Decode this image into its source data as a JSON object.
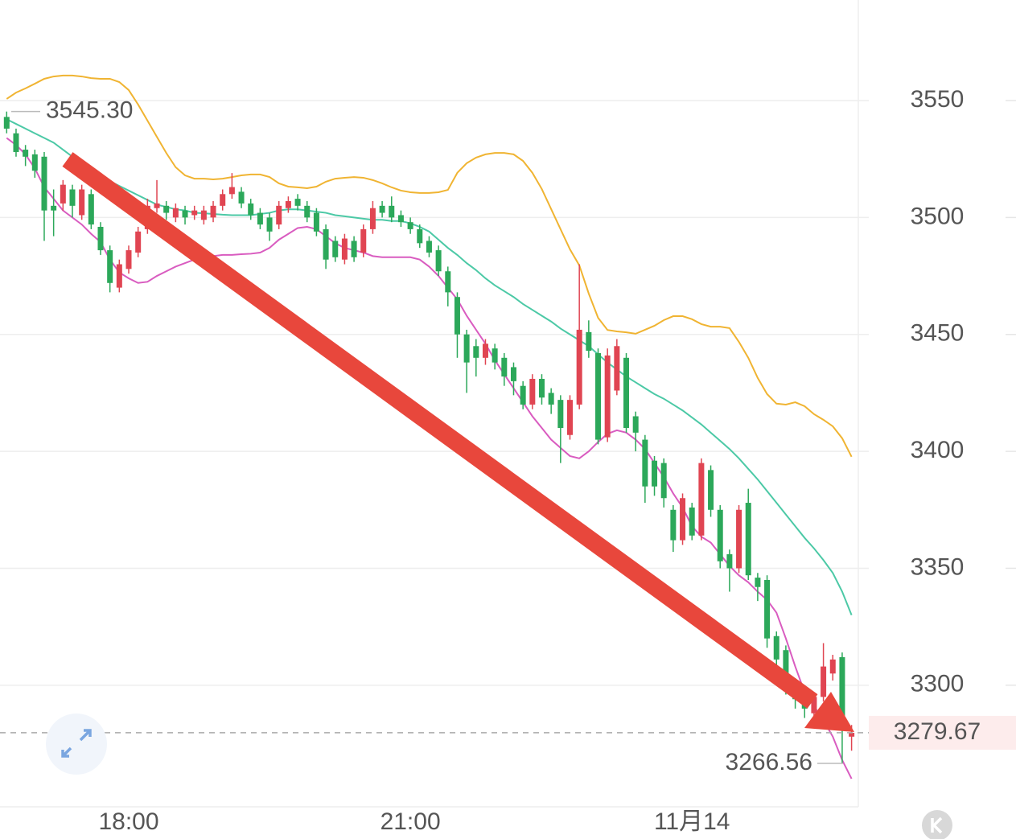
{
  "chart_data": {
    "type": "candlestick",
    "categories": [
      null,
      null,
      null,
      null,
      null,
      null,
      null,
      null,
      null,
      null,
      null,
      null,
      null,
      "18:00",
      null,
      null,
      null,
      null,
      null,
      null,
      null,
      null,
      null,
      null,
      null,
      null,
      null,
      null,
      null,
      null,
      null,
      null,
      null,
      null,
      null,
      null,
      null,
      null,
      null,
      null,
      null,
      null,
      null,
      "21:00",
      null,
      null,
      null,
      null,
      null,
      null,
      null,
      null,
      null,
      null,
      null,
      null,
      null,
      null,
      null,
      null,
      null,
      null,
      null,
      null,
      null,
      null,
      null,
      null,
      null,
      null,
      null,
      null,
      null,
      "11月14",
      null,
      null,
      null,
      null,
      null,
      null,
      null,
      null,
      null,
      null,
      null,
      null,
      null,
      null,
      null,
      null,
      null
    ],
    "open": [
      3543,
      3536,
      3529,
      3527,
      3526,
      3505,
      3506,
      3512,
      3501,
      3510,
      3496,
      3486,
      3470,
      3478,
      3485,
      3495,
      3504,
      3505,
      3500,
      3503,
      3501,
      3499,
      3500,
      3505,
      3510,
      3511,
      3506,
      3502,
      3500,
      3497,
      3504,
      3508,
      3505,
      3502,
      3495,
      3490,
      3482,
      3490,
      3485,
      3495,
      3505,
      3505,
      3501,
      3498,
      3495,
      3490,
      3486,
      3477,
      3466,
      3450,
      3445,
      3440,
      3444,
      3440,
      3436,
      3428,
      3420,
      3431,
      3425,
      3422,
      3407,
      3420,
      3451,
      3442,
      3406,
      3426,
      3440,
      3415,
      3405,
      3396,
      3395,
      3375,
      3362,
      3376,
      3364,
      3392,
      3375,
      3356,
      3350,
      3378,
      3346,
      3345,
      3321,
      3315,
      3301,
      3296,
      3288,
      3295,
      3305,
      3312,
      3278
    ],
    "high": [
      3545.3,
      3538,
      3531,
      3529,
      3528,
      3512,
      3516,
      3514,
      3514,
      3512,
      3498,
      3488,
      3482,
      3488,
      3496,
      3508,
      3516,
      3507,
      3506,
      3505,
      3505,
      3505,
      3507,
      3512,
      3519,
      3513,
      3508,
      3504,
      3502,
      3507,
      3509,
      3510,
      3507,
      3504,
      3497,
      3492,
      3493,
      3492,
      3497,
      3507,
      3507,
      3509,
      3503,
      3500,
      3497,
      3492,
      3488,
      3479,
      3468,
      3452,
      3448,
      3448,
      3446,
      3442,
      3438,
      3430,
      3433,
      3433,
      3427,
      3424,
      3424,
      3480,
      3456,
      3444,
      3444,
      3448,
      3442,
      3417,
      3407,
      3398,
      3397,
      3377,
      3382,
      3378,
      3397,
      3394,
      3377,
      3358,
      3377,
      3384,
      3348,
      3347,
      3323,
      3317,
      3303,
      3298,
      3297,
      3318,
      3313,
      3314,
      3283
    ],
    "low": [
      3536,
      3526,
      3522,
      3517,
      3490,
      3492,
      3503,
      3500,
      3499,
      3495,
      3484,
      3468,
      3468,
      3476,
      3483,
      3493,
      3502,
      3499,
      3498,
      3497,
      3499,
      3497,
      3498,
      3503,
      3508,
      3504,
      3499,
      3495,
      3490,
      3495,
      3502,
      3503,
      3498,
      3492,
      3478,
      3481,
      3480,
      3481,
      3483,
      3493,
      3500,
      3498,
      3496,
      3493,
      3487,
      3483,
      3475,
      3462,
      3440,
      3425,
      3432,
      3437,
      3435,
      3428,
      3424,
      3418,
      3418,
      3420,
      3416,
      3395,
      3405,
      3418,
      3440,
      3403,
      3404,
      3424,
      3408,
      3400,
      3378,
      3381,
      3376,
      3357,
      3360,
      3362,
      3362,
      3372,
      3350,
      3340,
      3348,
      3345,
      3336,
      3316,
      3308,
      3296,
      3290,
      3286,
      3285,
      3293,
      3302,
      3266.56,
      3272
    ],
    "close": [
      3538,
      3528,
      3526,
      3520,
      3503,
      3503,
      3514,
      3505,
      3512,
      3497,
      3486,
      3472,
      3480,
      3486,
      3494,
      3505,
      3506,
      3502,
      3504,
      3500,
      3503,
      3503,
      3505,
      3510,
      3513,
      3506,
      3501,
      3497,
      3494,
      3505,
      3507,
      3505,
      3500,
      3494,
      3482,
      3483,
      3491,
      3483,
      3495,
      3504,
      3502,
      3500,
      3498,
      3495,
      3489,
      3485,
      3477,
      3468,
      3450,
      3438,
      3440,
      3446,
      3438,
      3432,
      3430,
      3420,
      3431,
      3423,
      3420,
      3410,
      3422,
      3452,
      3443,
      3405,
      3441,
      3445,
      3410,
      3408,
      3385,
      3385,
      3380,
      3362,
      3380,
      3364,
      3395,
      3375,
      3353,
      3350,
      3375,
      3347,
      3342,
      3320,
      3311,
      3300,
      3294,
      3290,
      3295,
      3308,
      3311,
      3281,
      3279.67
    ],
    "up_color": "#e04552",
    "down_color": "#2ca85a",
    "series": [
      {
        "color": "#f0b432",
        "values": [
          3550.7,
          3553.4,
          3555.2,
          3557.2,
          3559.3,
          3560.3,
          3560.7,
          3560.7,
          3560.3,
          3559.6,
          3559.3,
          3559.3,
          3557.9,
          3554.5,
          3548.3,
          3541.4,
          3534.5,
          3527.6,
          3521.5,
          3518,
          3516.6,
          3516.6,
          3516.3,
          3516.6,
          3517.3,
          3518,
          3518.4,
          3518.4,
          3517.3,
          3514.6,
          3513.2,
          3512.9,
          3512.5,
          3513.2,
          3515.3,
          3516.6,
          3517,
          3517.3,
          3517,
          3516,
          3514.6,
          3512.9,
          3511.5,
          3510.8,
          3510.5,
          3510.5,
          3510.8,
          3511.8,
          3519.1,
          3523.2,
          3525.6,
          3527,
          3527.6,
          3527.6,
          3527,
          3524.2,
          3519.1,
          3512.2,
          3503.6,
          3495,
          3486.4,
          3479.5,
          3467.5,
          3457.1,
          3451.9,
          3451.3,
          3450.9,
          3450.3,
          3452,
          3453.7,
          3456.1,
          3457.8,
          3457.8,
          3456.5,
          3454.4,
          3453.3,
          3453.3,
          3452.7,
          3446.8,
          3440,
          3431.4,
          3424.5,
          3420.4,
          3420,
          3421,
          3419.3,
          3415.9,
          3413.5,
          3410.7,
          3405.6,
          3397.7
        ]
      },
      {
        "color": "#4cc9a6",
        "values": [
          3542,
          3540,
          3538,
          3536,
          3534,
          3532,
          3529,
          3526,
          3524,
          3521,
          3518,
          3515.5,
          3513.5,
          3511.5,
          3509.5,
          3507.5,
          3505.5,
          3504.5,
          3503.5,
          3503,
          3502,
          3501.8,
          3501.5,
          3501.2,
          3501,
          3501,
          3501,
          3501.5,
          3502,
          3503,
          3503.5,
          3503.5,
          3503,
          3502.5,
          3502,
          3501,
          3500.5,
          3500,
          3499.5,
          3499,
          3499,
          3498.5,
          3498.5,
          3497.5,
          3496,
          3494,
          3490.5,
          3487,
          3484,
          3480.5,
          3477.5,
          3474,
          3471,
          3468.5,
          3466,
          3463,
          3460.5,
          3458,
          3455.5,
          3452.5,
          3450,
          3447.5,
          3445,
          3441.5,
          3438,
          3435,
          3432,
          3429.5,
          3427,
          3424.5,
          3422.5,
          3420,
          3417.5,
          3414.5,
          3411.5,
          3408,
          3404.5,
          3401,
          3397,
          3392.5,
          3388,
          3383,
          3378,
          3373,
          3368,
          3363,
          3358.5,
          3353.5,
          3348,
          3340,
          3330
        ]
      },
      {
        "color": "#d95cc0",
        "values": [
          3534,
          3531,
          3527,
          3521,
          3513,
          3508,
          3503,
          3500,
          3497,
          3493,
          3489.5,
          3482,
          3476.5,
          3474,
          3472,
          3472.5,
          3475,
          3477,
          3479,
          3480.5,
          3482,
          3483,
          3483.5,
          3484,
          3484,
          3484.3,
          3484.5,
          3485,
          3487,
          3490.5,
          3493,
          3495.5,
          3496,
          3495,
          3492,
          3489,
          3487,
          3486,
          3485,
          3483.5,
          3483,
          3483,
          3483,
          3483,
          3482,
          3479,
          3475,
          3470,
          3465,
          3458,
          3452,
          3446,
          3439,
          3433,
          3427,
          3421,
          3415,
          3410,
          3405,
          3401.5,
          3398,
          3397,
          3400,
          3404,
          3407.5,
          3409,
          3408,
          3405,
          3401,
          3395,
          3389,
          3382,
          3376,
          3368,
          3363.5,
          3361,
          3356,
          3351,
          3347,
          3344,
          3340,
          3336.5,
          3331,
          3320,
          3308,
          3297,
          3291,
          3285,
          3278,
          3268,
          3260
        ]
      }
    ],
    "ylim": [
      3248,
      3593
    ],
    "yticks": [
      3300,
      3350,
      3400,
      3450,
      3500,
      3550
    ],
    "grid": true,
    "annotations": {
      "high": {
        "value": 3545.3,
        "label": "3545.30"
      },
      "low": 3266.56,
      "last": 3279.67
    }
  }
}
